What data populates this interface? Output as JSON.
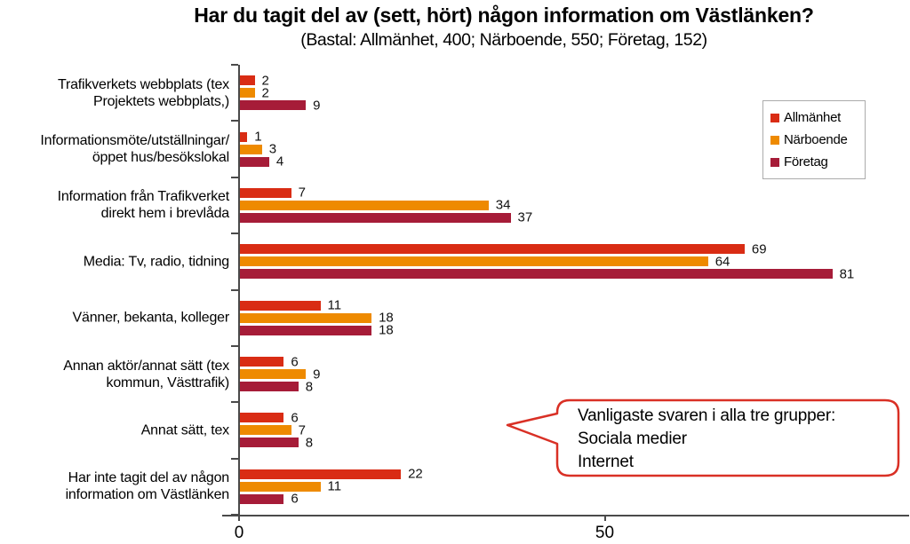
{
  "header": {
    "title": "Har du tagit del av (sett, hört) någon information om Västlänken?",
    "subtitle": "(Bastal: Allmänhet, 400; Närboende, 550; Företag, 152)"
  },
  "chart_data": {
    "type": "bar",
    "orientation": "horizontal",
    "title": "Har du tagit del av (sett, hört) någon information om Västlänken?",
    "subtitle": "(Bastal: Allmänhet, 400; Närboende, 550; Företag, 152)",
    "categories": [
      [
        "Trafikverkets webbplats (tex",
        "Projektets webbplats,)"
      ],
      [
        "Informationsmöte/utställningar/",
        "öppet hus/besökslokal"
      ],
      [
        "Information från Trafikverket",
        "direkt hem i brevlåda"
      ],
      [
        "Media: Tv, radio, tidning"
      ],
      [
        "Vänner, bekanta, kolleger"
      ],
      [
        "Annan aktör/annat sätt (tex",
        "kommun, Västtrafik)"
      ],
      [
        "Annat sätt, tex"
      ],
      [
        "Har inte tagit del av någon",
        "information om Västlänken"
      ]
    ],
    "series": [
      {
        "name": "Allmänhet",
        "color": "#d92c14",
        "values": [
          2,
          1,
          7,
          69,
          11,
          6,
          6,
          22
        ]
      },
      {
        "name": "Närboende",
        "color": "#ee8a00",
        "values": [
          2,
          3,
          34,
          64,
          18,
          9,
          7,
          11
        ]
      },
      {
        "name": "Företag",
        "color": "#a61c38",
        "values": [
          9,
          4,
          37,
          81,
          18,
          8,
          8,
          6
        ]
      }
    ],
    "xlim": [
      0,
      92
    ],
    "x_ticks": [
      0,
      50
    ],
    "grid": false,
    "legend_position": "top-right",
    "value_labels": true
  },
  "callout": {
    "border_color": "#d93025",
    "lines": [
      "Vanligaste svaren i alla tre grupper:",
      "Sociala medier",
      "Internet"
    ]
  },
  "colors": {
    "axis": "#4a4a4a",
    "allmanhet": "#d92c14",
    "narboende": "#ee8a00",
    "foretag": "#a61c38",
    "callout_border": "#d93025"
  }
}
